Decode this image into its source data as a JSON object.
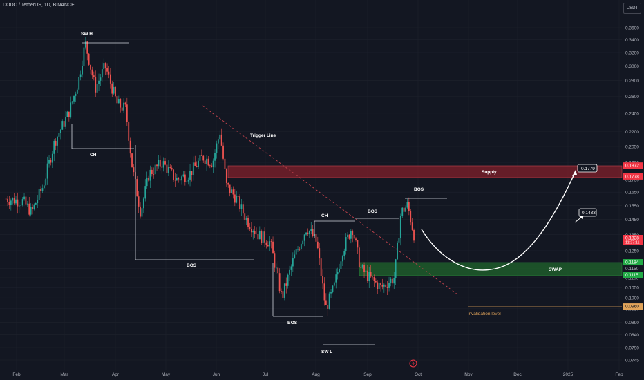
{
  "header": {
    "symbol": "DODO / TetherUS, 1D, BINANCE",
    "currency": "USDT"
  },
  "colors": {
    "background": "#131722",
    "up": "#26a69a",
    "down": "#ef5350",
    "grid": "#1e222d",
    "supply_zone": "#7a1f2b",
    "swap_zone": "#1f5c2a",
    "invalidation": "#e0a35a",
    "trigger_line": "#c2434d"
  },
  "chart_data": {
    "type": "candlestick",
    "symbol": "DODO / TetherUS",
    "interval": "1D",
    "exchange": "BINANCE",
    "y_axis": {
      "scale": "log",
      "ticks": [
        "0.3600",
        "0.3400",
        "0.3200",
        "0.3000",
        "0.2800",
        "0.2600",
        "0.2400",
        "0.2200",
        "0.2050",
        "0.1900",
        "0.1750",
        "0.1650",
        "0.1550",
        "0.1450",
        "0.1350",
        "0.1250",
        "0.1150",
        "0.1100",
        "0.1050",
        "0.1000",
        "0.0950",
        "0.0890",
        "0.0840",
        "0.0790",
        "0.0745"
      ]
    },
    "x_axis": {
      "ticks": [
        "Feb",
        "Mar",
        "Apr",
        "May",
        "Jun",
        "Jul",
        "Aug",
        "Sep",
        "Oct",
        "Nov",
        "Dec",
        "2025",
        "Feb"
      ]
    },
    "price_path": [
      [
        "Jan 25",
        0.16
      ],
      [
        "Feb 5",
        0.158
      ],
      [
        "Feb 10",
        0.15
      ],
      [
        "Feb 17",
        0.17
      ],
      [
        "Feb 24",
        0.21
      ],
      [
        "Mar 2",
        0.24
      ],
      [
        "Mar 8",
        0.28
      ],
      [
        "Mar 12",
        0.335
      ],
      [
        "Mar 18",
        0.27
      ],
      [
        "Mar 24",
        0.3
      ],
      [
        "Apr 1",
        0.25
      ],
      [
        "Apr 6",
        0.245
      ],
      [
        "Apr 10",
        0.185
      ],
      [
        "Apr 15",
        0.15
      ],
      [
        "Apr 20",
        0.18
      ],
      [
        "Apr 28",
        0.19
      ],
      [
        "May 6",
        0.175
      ],
      [
        "May 14",
        0.18
      ],
      [
        "May 22",
        0.195
      ],
      [
        "May 28",
        0.19
      ],
      [
        "Jun 2",
        0.22
      ],
      [
        "Jun 6",
        0.17
      ],
      [
        "Jun 12",
        0.16
      ],
      [
        "Jun 18",
        0.145
      ],
      [
        "Jun 25",
        0.135
      ],
      [
        "Jul 2",
        0.13
      ],
      [
        "Jul 9",
        0.1
      ],
      [
        "Jul 16",
        0.12
      ],
      [
        "Jul 24",
        0.14
      ],
      [
        "Jul 30",
        0.13
      ],
      [
        "Aug 5",
        0.095
      ],
      [
        "Aug 10",
        0.105
      ],
      [
        "Aug 15",
        0.125
      ],
      [
        "Aug 21",
        0.14
      ],
      [
        "Aug 26",
        0.115
      ],
      [
        "Sep 1",
        0.11
      ],
      [
        "Sep 8",
        0.105
      ],
      [
        "Sep 16",
        0.11
      ],
      [
        "Sep 20",
        0.15
      ],
      [
        "Sep 24",
        0.155
      ],
      [
        "Sep 28",
        0.134
      ]
    ],
    "annotations": {
      "swing_high": "SW H",
      "swing_low": "SW L",
      "ch_top": "CH",
      "ch_mid": "CH",
      "bos_left": "BOS",
      "bos_low": "BOS",
      "bos_mid": "BOS",
      "bos_right": "BOS",
      "trigger_line": "Trigger Line",
      "supply": "Supply",
      "swap": "SWAP",
      "invalidation": "invalidation level",
      "target_1": "0.1779",
      "target_2": "0.1433"
    },
    "price_tags": [
      {
        "value": "0.1872",
        "color": "#f23645"
      },
      {
        "value": "0.1778",
        "color": "#f23645"
      },
      {
        "value": "0.1328",
        "sub": "11:27:11",
        "color": "#f23645"
      },
      {
        "value": "0.1184",
        "color": "#22ab46"
      },
      {
        "value": "0.1115",
        "color": "#22ab46"
      },
      {
        "value": "0.0960",
        "color": "#e0a35a",
        "text_color": "#131722"
      }
    ]
  }
}
